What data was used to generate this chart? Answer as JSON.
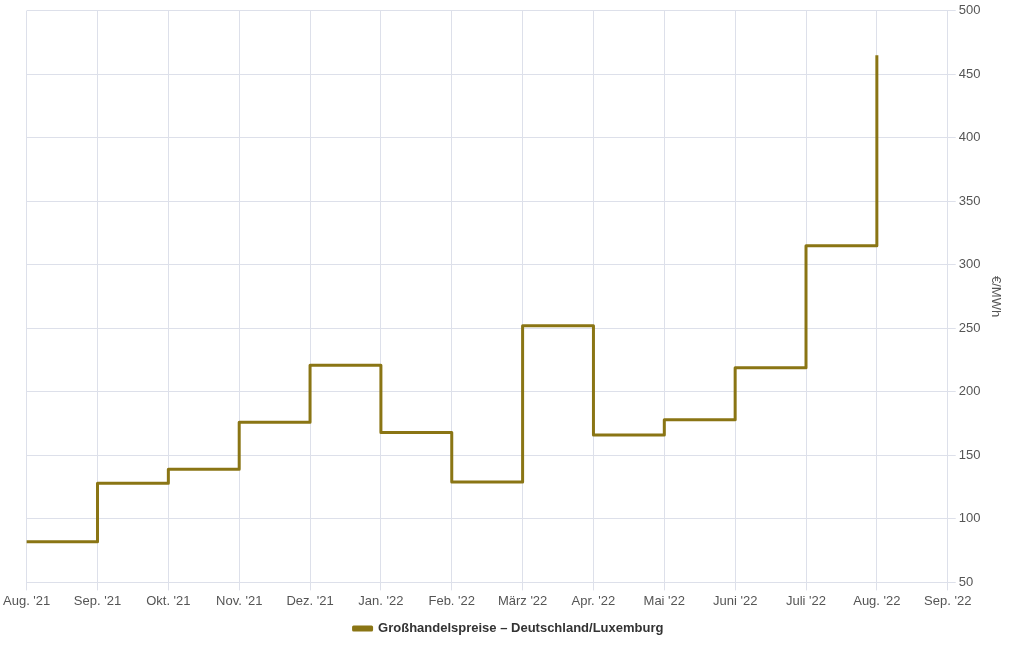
{
  "chart_data": {
    "type": "step",
    "categories": [
      "Aug. '21",
      "Sep. '21",
      "Okt. '21",
      "Nov. '21",
      "Dez. '21",
      "Jan. '22",
      "Feb. '22",
      "März '22",
      "Apr. '22",
      "Mai '22",
      "Juni '22",
      "Juli '22",
      "Aug. '22",
      "Sep. '22"
    ],
    "series": [
      {
        "name": "Großhandelspreise – Deutschland/Luxemburg",
        "color": "#8a7514",
        "values": [
          82,
          128,
          139,
          176,
          221,
          168,
          129,
          252,
          166,
          178,
          219,
          315,
          465,
          null
        ]
      }
    ],
    "ylabel": "€/MWh",
    "ylim": [
      50,
      500
    ],
    "yticks": [
      50,
      100,
      150,
      200,
      250,
      300,
      350,
      400,
      450,
      500
    ],
    "grid": true,
    "legend": "bottom",
    "marker": "none",
    "line_style": "solid"
  }
}
